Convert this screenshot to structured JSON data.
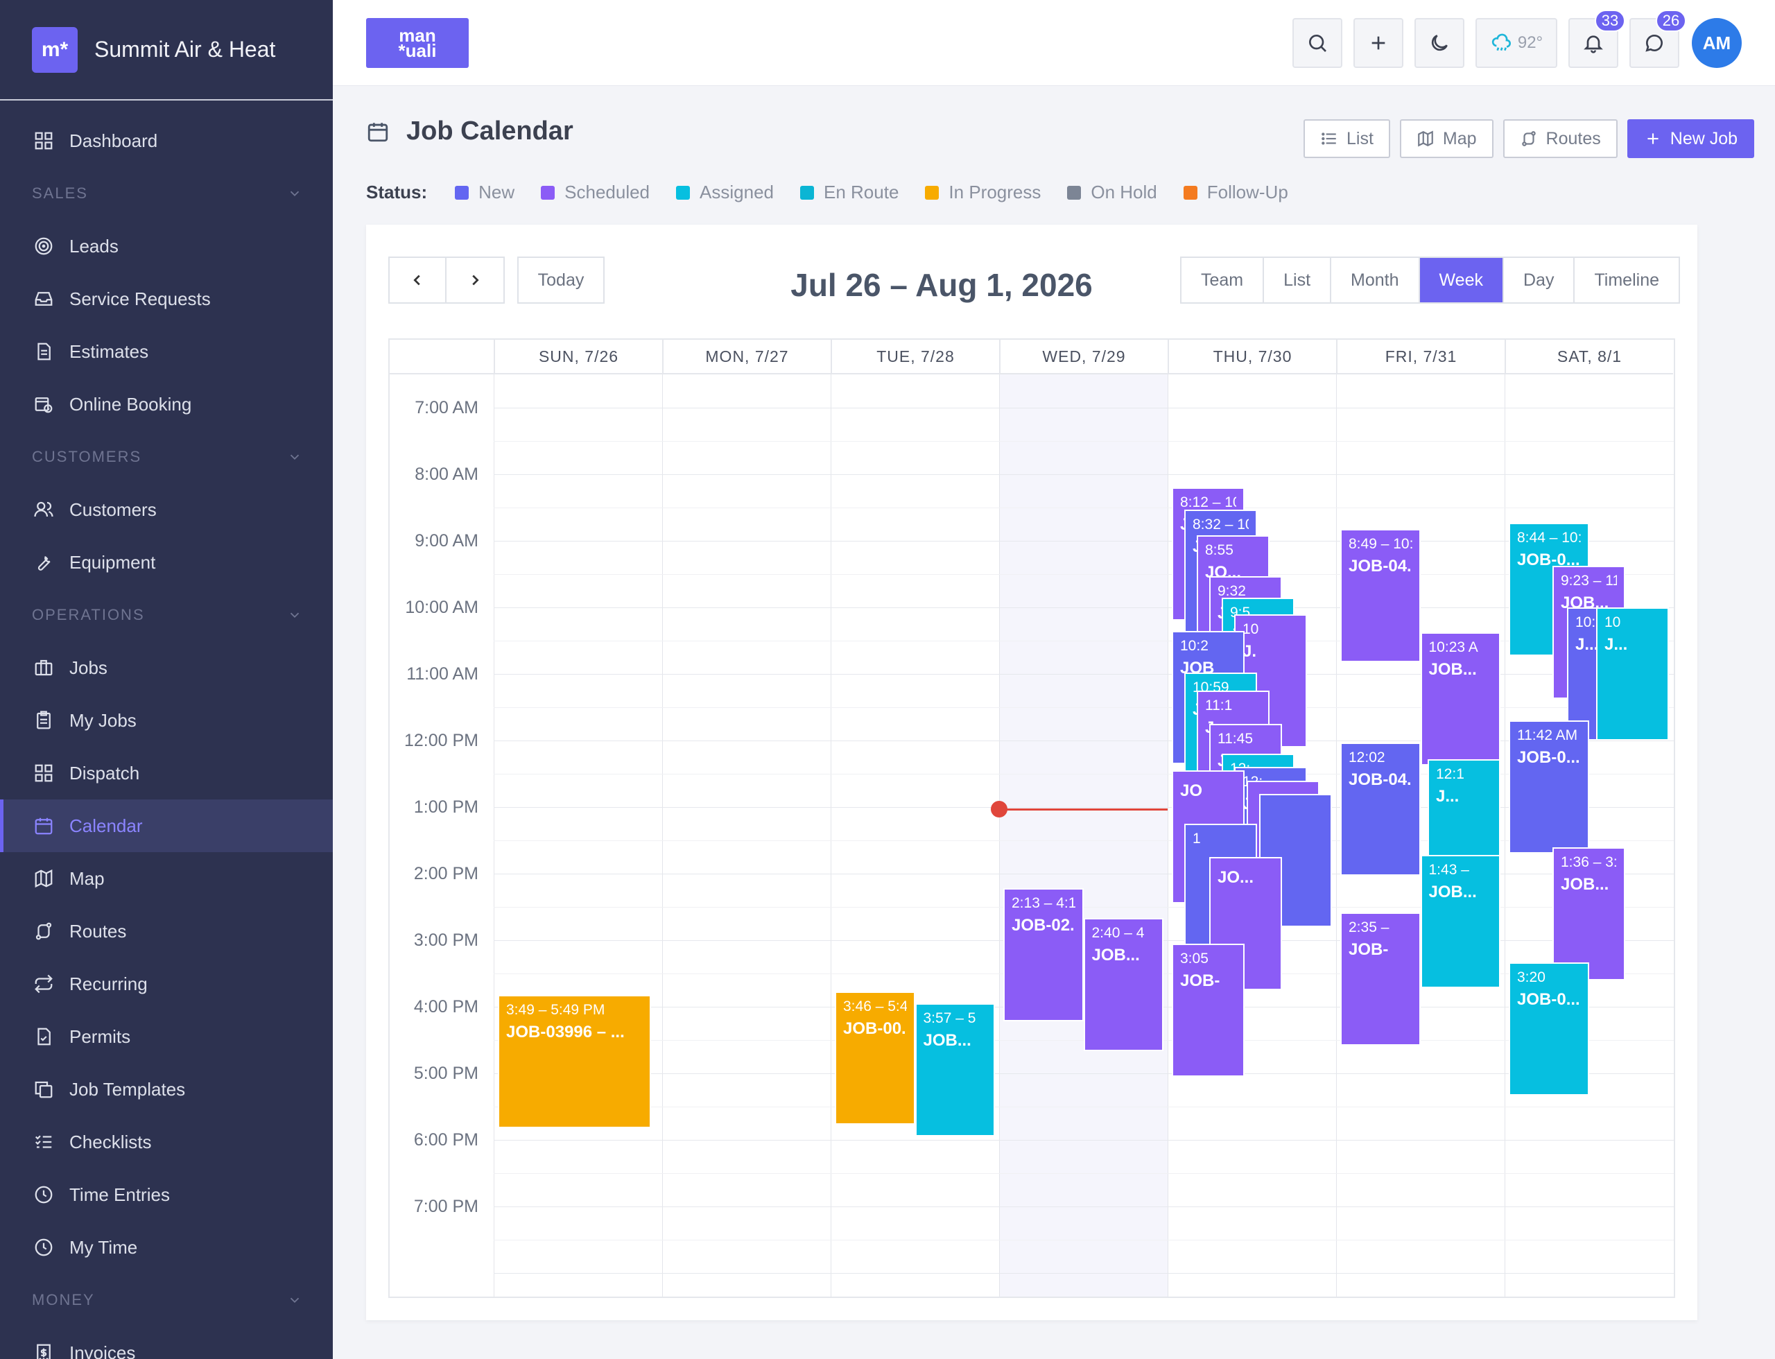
{
  "brand": {
    "logo_text": "m*",
    "name": "Summit Air & Heat"
  },
  "sidebar": {
    "items": [
      {
        "type": "item",
        "name": "dashboard",
        "label": "Dashboard",
        "icon": "grid-icon"
      },
      {
        "type": "section",
        "name": "sales",
        "label": "SALES"
      },
      {
        "type": "item",
        "name": "leads",
        "label": "Leads",
        "icon": "target-icon"
      },
      {
        "type": "item",
        "name": "service-requests",
        "label": "Service Requests",
        "icon": "inbox-icon"
      },
      {
        "type": "item",
        "name": "estimates",
        "label": "Estimates",
        "icon": "document-icon"
      },
      {
        "type": "item",
        "name": "online-booking",
        "label": "Online Booking",
        "icon": "calendar-clock-icon"
      },
      {
        "type": "section",
        "name": "customers",
        "label": "CUSTOMERS"
      },
      {
        "type": "item",
        "name": "customers",
        "label": "Customers",
        "icon": "users-icon"
      },
      {
        "type": "item",
        "name": "equipment",
        "label": "Equipment",
        "icon": "wrench-icon"
      },
      {
        "type": "section",
        "name": "operations",
        "label": "OPERATIONS"
      },
      {
        "type": "item",
        "name": "jobs",
        "label": "Jobs",
        "icon": "briefcase-icon"
      },
      {
        "type": "item",
        "name": "my-jobs",
        "label": "My Jobs",
        "icon": "clipboard-icon"
      },
      {
        "type": "item",
        "name": "dispatch",
        "label": "Dispatch",
        "icon": "grid-icon"
      },
      {
        "type": "item",
        "name": "calendar",
        "label": "Calendar",
        "icon": "calendar-icon",
        "active": true
      },
      {
        "type": "item",
        "name": "map",
        "label": "Map",
        "icon": "map-icon"
      },
      {
        "type": "item",
        "name": "routes",
        "label": "Routes",
        "icon": "route-icon"
      },
      {
        "type": "item",
        "name": "recurring",
        "label": "Recurring",
        "icon": "repeat-icon"
      },
      {
        "type": "item",
        "name": "permits",
        "label": "Permits",
        "icon": "file-check-icon"
      },
      {
        "type": "item",
        "name": "job-templates",
        "label": "Job Templates",
        "icon": "copy-icon"
      },
      {
        "type": "item",
        "name": "checklists",
        "label": "Checklists",
        "icon": "checklist-icon"
      },
      {
        "type": "item",
        "name": "time-entries",
        "label": "Time Entries",
        "icon": "clock-icon"
      },
      {
        "type": "item",
        "name": "my-time",
        "label": "My Time",
        "icon": "clock-icon"
      },
      {
        "type": "section",
        "name": "money",
        "label": "MONEY"
      },
      {
        "type": "item",
        "name": "invoices",
        "label": "Invoices",
        "icon": "invoice-icon"
      }
    ]
  },
  "topbar": {
    "logo_line1": "man",
    "logo_line2": "*uali",
    "weather": "92°",
    "notifications_count": "33",
    "messages_count": "26",
    "avatar_initials": "AM"
  },
  "page": {
    "title": "Job Calendar",
    "buttons": {
      "list": "List",
      "map": "Map",
      "routes": "Routes",
      "new_job": "New Job"
    }
  },
  "status": {
    "label": "Status:",
    "items": [
      {
        "label": "New",
        "color": "#6366f1"
      },
      {
        "label": "Scheduled",
        "color": "#8b5cf6"
      },
      {
        "label": "Assigned",
        "color": "#06bfe0"
      },
      {
        "label": "En Route",
        "color": "#0bb5d4"
      },
      {
        "label": "In Progress",
        "color": "#f7ab00"
      },
      {
        "label": "On Hold",
        "color": "#7c8595"
      },
      {
        "label": "Follow-Up",
        "color": "#f47b20"
      }
    ]
  },
  "calendar": {
    "today_label": "Today",
    "range_title": "Jul 26 – Aug 1, 2026",
    "views": [
      "Team",
      "List",
      "Month",
      "Week",
      "Day",
      "Timeline"
    ],
    "active_view": "Week",
    "days": [
      "SUN, 7/26",
      "MON, 7/27",
      "TUE, 7/28",
      "WED, 7/29",
      "THU, 7/30",
      "FRI, 7/31",
      "SAT, 8/1"
    ],
    "today_index": 3,
    "times": [
      "7:00 AM",
      "8:00 AM",
      "9:00 AM",
      "10:00 AM",
      "11:00 AM",
      "12:00 PM",
      "1:00 PM",
      "2:00 PM",
      "3:00 PM",
      "4:00 PM",
      "5:00 PM",
      "6:00 PM",
      "7:00 PM"
    ],
    "now_hour": 13.03,
    "events": [
      {
        "day": 0,
        "start": 15.82,
        "end": 17.82,
        "lane": 0,
        "lanes": 1,
        "color": "#f7ab00",
        "time": "3:49 – 5:49 PM",
        "job": "JOB-03996 – ..."
      },
      {
        "day": 2,
        "start": 15.77,
        "end": 17.77,
        "lane": 0,
        "lanes": 2,
        "color": "#f7ab00",
        "time": "3:46 – 5:46 PM",
        "job": "JOB-00..."
      },
      {
        "day": 2,
        "start": 15.95,
        "end": 17.95,
        "lane": 1,
        "lanes": 2,
        "color": "#06bfe0",
        "time": "3:57 – 5",
        "job": "JOB..."
      },
      {
        "day": 3,
        "start": 14.22,
        "end": 16.22,
        "lane": 0,
        "lanes": 2,
        "color": "#8b5cf6",
        "time": "2:13 – 4:13 PM",
        "job": "JOB-02..."
      },
      {
        "day": 3,
        "start": 14.67,
        "end": 16.67,
        "lane": 1,
        "lanes": 2,
        "color": "#8b5cf6",
        "time": "2:40 – 4",
        "job": "JOB..."
      },
      {
        "day": 4,
        "start": 8.2,
        "end": 10.2,
        "lane": 0,
        "lanes": 8,
        "color": "#8b5cf6",
        "time": "8:12 – 10:12",
        "job": "J..."
      },
      {
        "day": 4,
        "start": 8.53,
        "end": 10.53,
        "lane": 1,
        "lanes": 8,
        "color": "#6366f1",
        "time": "8:32 – 10",
        "job": "J..."
      },
      {
        "day": 4,
        "start": 8.92,
        "end": 10.92,
        "lane": 2,
        "lanes": 8,
        "color": "#8b5cf6",
        "time": "8:55",
        "job": "JO..."
      },
      {
        "day": 4,
        "start": 9.53,
        "end": 11.53,
        "lane": 3,
        "lanes": 8,
        "color": "#8b5cf6",
        "time": "9:32",
        "job": "J..."
      },
      {
        "day": 4,
        "start": 9.85,
        "end": 11.85,
        "lane": 4,
        "lanes": 8,
        "color": "#06bfe0",
        "time": "9:5",
        "job": "J"
      },
      {
        "day": 4,
        "start": 10.1,
        "end": 12.1,
        "lane": 5,
        "lanes": 8,
        "color": "#8b5cf6",
        "time": "10",
        "job": "J."
      },
      {
        "day": 4,
        "start": 10.35,
        "end": 12.35,
        "lane": 0,
        "lanes": 8,
        "color": "#6366f1",
        "time": "10:2",
        "job": "JOB"
      },
      {
        "day": 4,
        "start": 10.98,
        "end": 12.98,
        "lane": 1,
        "lanes": 8,
        "color": "#06bfe0",
        "time": "10:59",
        "job": "J"
      },
      {
        "day": 4,
        "start": 11.25,
        "end": 13.25,
        "lane": 2,
        "lanes": 8,
        "color": "#8b5cf6",
        "time": "11:1",
        "job": "J"
      },
      {
        "day": 4,
        "start": 11.75,
        "end": 13.75,
        "lane": 3,
        "lanes": 8,
        "color": "#8b5cf6",
        "time": "11:45",
        "job": "J"
      },
      {
        "day": 4,
        "start": 12.2,
        "end": 14.2,
        "lane": 4,
        "lanes": 8,
        "color": "#06bfe0",
        "time": "12:",
        "job": "J"
      },
      {
        "day": 4,
        "start": 12.4,
        "end": 14.4,
        "lane": 5,
        "lanes": 8,
        "color": "#6366f1",
        "time": "12:",
        "job": "J"
      },
      {
        "day": 4,
        "start": 12.6,
        "end": 14.6,
        "lane": 6,
        "lanes": 8,
        "color": "#8b5cf6",
        "time": "",
        "job": ""
      },
      {
        "day": 4,
        "start": 12.8,
        "end": 14.8,
        "lane": 7,
        "lanes": 8,
        "color": "#6366f1",
        "time": "",
        "job": ""
      },
      {
        "day": 4,
        "start": 12.45,
        "end": 14.45,
        "lane": 0,
        "lanes": 8,
        "color": "#8b5cf6",
        "time": "",
        "job": "JO"
      },
      {
        "day": 4,
        "start": 13.25,
        "end": 15.25,
        "lane": 1,
        "lanes": 8,
        "color": "#6366f1",
        "time": "1",
        "job": ""
      },
      {
        "day": 4,
        "start": 13.75,
        "end": 15.75,
        "lane": 3,
        "lanes": 8,
        "color": "#8b5cf6",
        "time": "",
        "job": "JO..."
      },
      {
        "day": 4,
        "start": 15.05,
        "end": 17.05,
        "lane": 0,
        "lanes": 4,
        "color": "#8b5cf6",
        "time": "3:05",
        "job": "JOB-"
      },
      {
        "day": 5,
        "start": 8.82,
        "end": 10.82,
        "lane": 0,
        "lanes": 2,
        "color": "#8b5cf6",
        "time": "8:49 – 10:49",
        "job": "JOB-04..."
      },
      {
        "day": 5,
        "start": 10.38,
        "end": 12.38,
        "lane": 1,
        "lanes": 2,
        "color": "#8b5cf6",
        "time": "10:23 A",
        "job": "JOB..."
      },
      {
        "day": 5,
        "start": 12.03,
        "end": 14.03,
        "lane": 0,
        "lanes": 2,
        "color": "#6366f1",
        "time": "12:02",
        "job": "JOB-04..."
      },
      {
        "day": 5,
        "start": 12.28,
        "end": 14.28,
        "lane": 2,
        "lanes": 3,
        "color": "#06bfe0",
        "time": "12:1",
        "job": "J..."
      },
      {
        "day": 5,
        "start": 13.72,
        "end": 15.72,
        "lane": 1,
        "lanes": 2,
        "color": "#06bfe0",
        "time": "1:43 –",
        "job": "JOB..."
      },
      {
        "day": 5,
        "start": 14.58,
        "end": 16.58,
        "lane": 0,
        "lanes": 2,
        "color": "#8b5cf6",
        "time": "2:35 –",
        "job": "JOB-"
      },
      {
        "day": 6,
        "start": 8.73,
        "end": 10.73,
        "lane": 0,
        "lanes": 2,
        "color": "#06bfe0",
        "time": "8:44 – 10:44",
        "job": "JOB-0..."
      },
      {
        "day": 6,
        "start": 9.38,
        "end": 11.38,
        "lane": 1,
        "lanes": 3,
        "color": "#8b5cf6",
        "time": "9:23 – 11",
        "job": "JOB..."
      },
      {
        "day": 6,
        "start": 10.0,
        "end": 12.0,
        "lane": 2,
        "lanes": 4,
        "color": "#6366f1",
        "time": "10:0",
        "job": "J..."
      },
      {
        "day": 6,
        "start": 10.0,
        "end": 12.0,
        "lane": 3,
        "lanes": 4,
        "color": "#06bfe0",
        "time": "10",
        "job": "J..."
      },
      {
        "day": 6,
        "start": 11.7,
        "end": 13.7,
        "lane": 0,
        "lanes": 2,
        "color": "#6366f1",
        "time": "11:42 AM",
        "job": "JOB-0..."
      },
      {
        "day": 6,
        "start": 13.6,
        "end": 15.6,
        "lane": 1,
        "lanes": 3,
        "color": "#8b5cf6",
        "time": "1:36 – 3:",
        "job": "JOB..."
      },
      {
        "day": 6,
        "start": 15.33,
        "end": 17.33,
        "lane": 0,
        "lanes": 2,
        "color": "#06bfe0",
        "time": "3:20",
        "job": "JOB-0..."
      }
    ]
  }
}
